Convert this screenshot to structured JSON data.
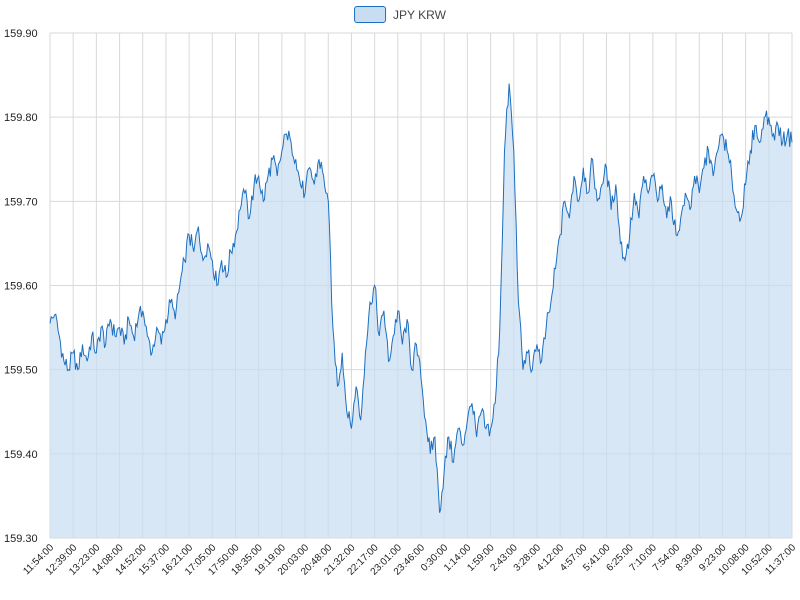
{
  "legend": {
    "label": "JPY KRW"
  },
  "chart_data": {
    "type": "area",
    "title": "",
    "legend_position": "top-center",
    "grid": true,
    "ylim": [
      159.3,
      159.9
    ],
    "y_ticks": [
      "159.30",
      "159.40",
      "159.50",
      "159.60",
      "159.70",
      "159.80",
      "159.90"
    ],
    "x_tick_labels": [
      "11:54:00",
      "12:39:00",
      "13:23:00",
      "14:08:00",
      "14:52:00",
      "15:37:00",
      "16:21:00",
      "17:05:00",
      "17:50:00",
      "18:35:00",
      "19:19:00",
      "20:03:00",
      "20:48:00",
      "21:32:00",
      "22:17:00",
      "23:01:00",
      "23:46:00",
      "0:30:00",
      "1:14:00",
      "1:59:00",
      "2:43:00",
      "3:28:00",
      "4:12:00",
      "4:57:00",
      "5:41:00",
      "6:25:00",
      "7:10:00",
      "7:54:00",
      "8:39:00",
      "9:23:00",
      "10:08:00",
      "10:52:00",
      "11:37:00"
    ],
    "points_per_tick_interval": 5,
    "series": [
      {
        "name": "JPY KRW",
        "values": [
          159.555,
          159.565,
          159.54,
          159.51,
          159.5,
          159.52,
          159.5,
          159.53,
          159.51,
          159.54,
          159.52,
          159.55,
          159.53,
          159.56,
          159.54,
          159.55,
          159.53,
          159.56,
          159.54,
          159.56,
          159.57,
          159.54,
          159.52,
          159.55,
          159.53,
          159.56,
          159.58,
          159.56,
          159.6,
          159.63,
          159.66,
          159.64,
          159.67,
          159.63,
          159.65,
          159.63,
          159.6,
          159.63,
          159.61,
          159.64,
          159.66,
          159.69,
          159.71,
          159.68,
          159.72,
          159.73,
          159.7,
          159.73,
          159.75,
          159.73,
          159.76,
          159.78,
          159.77,
          159.75,
          159.72,
          159.71,
          159.74,
          159.72,
          159.75,
          159.73,
          159.7,
          159.55,
          159.48,
          159.52,
          159.45,
          159.43,
          159.48,
          159.44,
          159.52,
          159.58,
          159.6,
          159.54,
          159.57,
          159.51,
          159.54,
          159.57,
          159.53,
          159.56,
          159.5,
          159.53,
          159.49,
          159.44,
          159.4,
          159.42,
          159.33,
          159.38,
          159.42,
          159.39,
          159.43,
          159.41,
          159.44,
          159.46,
          159.42,
          159.45,
          159.43,
          159.43,
          159.46,
          159.55,
          159.76,
          159.84,
          159.76,
          159.58,
          159.5,
          159.52,
          159.5,
          159.53,
          159.51,
          159.55,
          159.58,
          159.62,
          159.66,
          159.7,
          159.68,
          159.73,
          159.7,
          159.74,
          159.71,
          159.75,
          159.7,
          159.72,
          159.74,
          159.69,
          159.72,
          159.65,
          159.63,
          159.66,
          159.71,
          159.68,
          159.73,
          159.71,
          159.73,
          159.7,
          159.72,
          159.68,
          159.7,
          159.66,
          159.68,
          159.71,
          159.69,
          159.73,
          159.71,
          159.74,
          159.76,
          159.73,
          159.76,
          159.78,
          159.76,
          159.73,
          159.69,
          159.68,
          159.72,
          159.76,
          159.79,
          159.77,
          159.8,
          159.8,
          159.78,
          159.79,
          159.77,
          159.78,
          159.77
        ]
      }
    ],
    "visual_noise_amplitude": 0.011,
    "colors": {
      "line": "#1c6fc0",
      "fill": "#c8ddf2",
      "fill_opacity": 0.7,
      "grid": "#d9d9d9",
      "axis_text": "#222222"
    }
  }
}
